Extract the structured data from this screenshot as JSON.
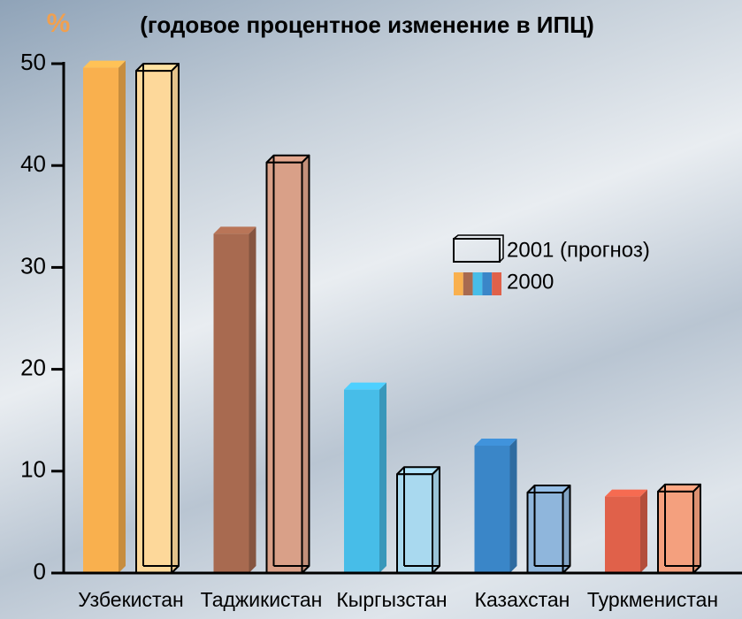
{
  "chart_data": {
    "type": "bar3d",
    "title": "(годовое процентное изменение в ИПЦ)",
    "ylabel": "%",
    "categories": [
      "Узбекистан",
      "Таджикистан",
      "Кыргызстан",
      "Казахстан",
      "Туркменистан"
    ],
    "series": [
      {
        "name": "2000",
        "style": "solid",
        "colors": [
          "#f9b04e",
          "#a86a50",
          "#47bde8",
          "#3a86c8",
          "#e0614a"
        ],
        "values": [
          49.6,
          33.3,
          18,
          12.5,
          7.5
        ]
      },
      {
        "name": "2001 (прогноз)",
        "style": "outline",
        "colors": [
          "#fdd89a",
          "#d9a088",
          "#a9d9ef",
          "#8fb6dc",
          "#f4a07e"
        ],
        "values": [
          49.3,
          40.3,
          9.7,
          7.9,
          8
        ]
      }
    ],
    "ylim": [
      0,
      50
    ],
    "yticks": [
      0,
      10,
      20,
      30,
      40,
      50
    ]
  }
}
